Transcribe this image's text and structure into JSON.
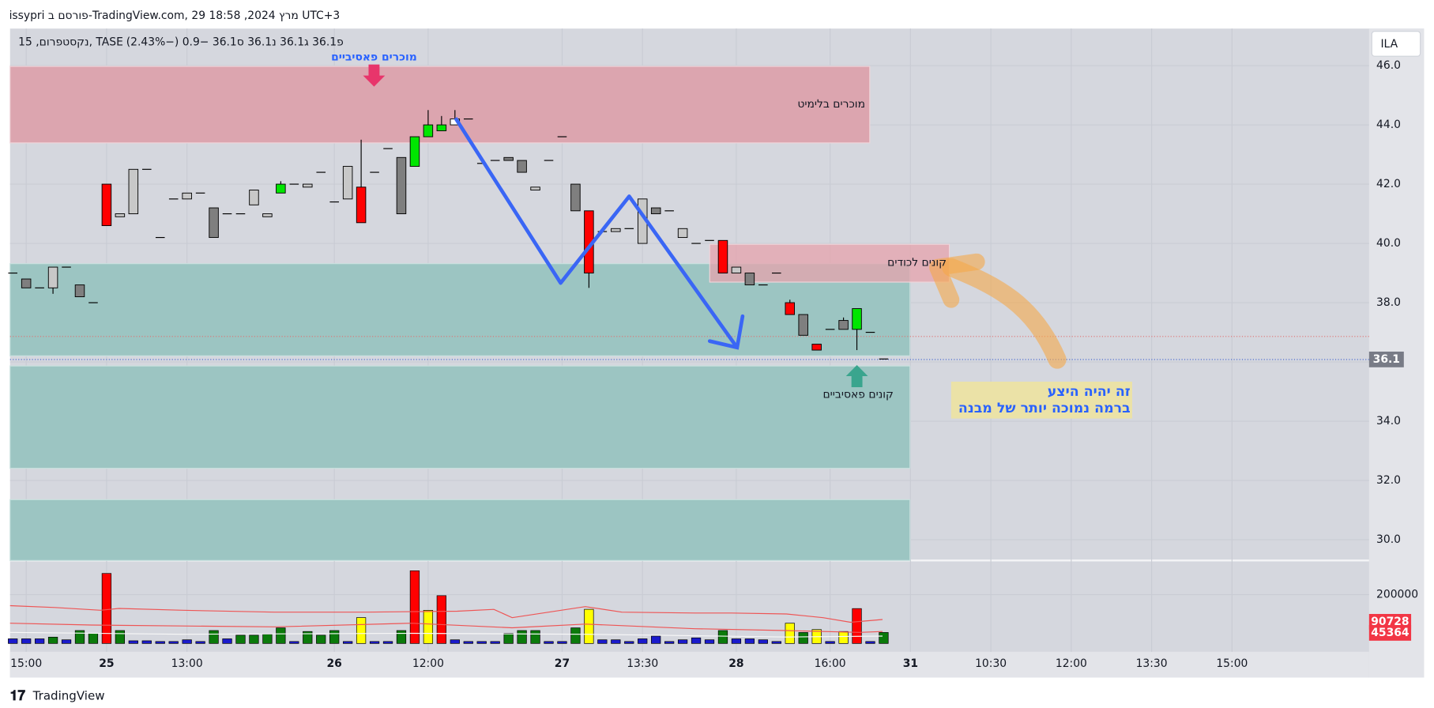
{
  "header": {
    "text": "issypri פורסם ב-TradingView.com, 29 מרץ 2024, 18:58 UTC+3"
  },
  "annotations": {
    "passive_sellers": "מוכרים פאסיביים",
    "limit_sellers": "מוכרים בלימיט",
    "trapped_buyers": "קונים לכודים",
    "passive_buyers": "קונים פאסיביים",
    "note_line1": "זה יהיה היצע",
    "note_line2": "ברמה נמוכה יותר של מבנה"
  },
  "footer": {
    "brand": "TradingView"
  },
  "chart_data": {
    "type": "candlestick",
    "symbol": "נקסטפרום, 15, TASE",
    "ohlc_text": "פ36.1 ג36.1 נ36.1 ס36.1 −0.9 (−2.43%)",
    "currency": "ILA",
    "categories": [
      null,
      "15:00",
      null,
      null,
      null,
      null,
      null,
      "25",
      null,
      null,
      null,
      null,
      null,
      "13:00",
      null,
      null,
      null,
      null,
      null,
      null,
      null,
      null,
      null,
      null,
      "26",
      null,
      null,
      null,
      null,
      null,
      null,
      "12:00",
      null,
      null,
      null,
      null,
      null,
      null,
      null,
      null,
      null,
      "27",
      null,
      null,
      null,
      null,
      null,
      "13:30",
      null,
      null,
      null,
      null,
      null,
      null,
      "28",
      null,
      null,
      null,
      null,
      null,
      null,
      "16:00",
      null,
      null,
      null,
      null,
      null,
      "31",
      null,
      null,
      null,
      null,
      null,
      "10:30",
      null,
      null,
      null,
      null,
      null,
      "12:00",
      null,
      null,
      null,
      null,
      null,
      "13:30",
      null,
      null,
      null,
      null,
      null,
      "15:00",
      null
    ],
    "open": [
      39.0,
      38.8,
      38.5,
      38.5,
      39.2,
      38.6,
      38.0,
      42.0,
      40.9,
      41.0,
      42.5,
      40.2,
      41.5,
      41.5,
      41.7,
      41.2,
      41.0,
      41.0,
      41.3,
      40.9,
      41.7,
      42.0,
      41.9,
      42.4,
      41.4,
      41.5,
      41.9,
      42.4,
      43.2,
      41.0,
      42.6,
      43.6,
      43.8,
      44.0,
      44.2,
      42.7,
      42.8,
      42.9,
      42.8,
      41.9,
      42.8,
      43.6,
      42.0,
      41.1,
      40.4,
      40.4,
      40.5,
      41.5,
      41.2,
      41.1,
      40.5,
      40.0,
      40.1,
      40.1,
      39.2,
      39.0,
      38.6,
      39.0,
      38.0,
      37.6,
      36.6,
      37.1,
      37.1,
      37.1,
      37.0,
      36.1,
      null,
      null,
      null,
      null,
      null,
      null,
      null,
      null,
      null,
      null,
      null,
      null,
      null,
      null,
      null,
      null,
      null,
      null,
      null,
      null,
      null,
      null,
      null,
      null,
      null,
      null,
      null
    ],
    "high": [
      39.0,
      38.8,
      38.5,
      39.2,
      39.2,
      38.6,
      38.0,
      42.0,
      41.0,
      42.5,
      42.5,
      40.2,
      41.5,
      41.7,
      41.7,
      41.2,
      41.0,
      41.0,
      41.8,
      41.0,
      42.1,
      42.0,
      42.0,
      42.4,
      41.4,
      42.6,
      43.5,
      42.4,
      43.2,
      42.9,
      43.6,
      44.5,
      44.3,
      44.5,
      44.2,
      42.7,
      42.8,
      42.9,
      42.8,
      41.9,
      42.8,
      43.6,
      42.0,
      41.1,
      40.4,
      40.5,
      40.5,
      41.5,
      41.2,
      41.1,
      40.5,
      40.0,
      40.1,
      40.1,
      39.2,
      39.0,
      38.6,
      39.0,
      38.1,
      37.6,
      36.6,
      37.1,
      37.5,
      37.8,
      37.0,
      36.1,
      null,
      null,
      null,
      null,
      null,
      null,
      null,
      null,
      null,
      null,
      null,
      null,
      null,
      null,
      null,
      null,
      null,
      null,
      null,
      null,
      null,
      null,
      null,
      null,
      null,
      null,
      null
    ],
    "low": [
      39.0,
      38.5,
      38.5,
      38.3,
      39.2,
      38.2,
      38.0,
      40.6,
      40.9,
      41.0,
      42.5,
      40.2,
      41.5,
      41.5,
      41.7,
      40.2,
      41.0,
      41.0,
      41.3,
      40.9,
      41.7,
      42.0,
      41.9,
      42.4,
      41.4,
      41.5,
      40.7,
      42.4,
      43.2,
      41.0,
      42.6,
      43.6,
      43.8,
      44.0,
      44.2,
      42.7,
      42.8,
      42.8,
      42.4,
      41.8,
      42.8,
      43.6,
      41.1,
      38.5,
      40.4,
      40.4,
      40.5,
      40.0,
      41.0,
      41.1,
      40.2,
      40.0,
      40.1,
      39.0,
      39.0,
      38.6,
      38.6,
      39.0,
      37.6,
      36.9,
      36.4,
      37.1,
      37.1,
      36.4,
      37.0,
      36.1,
      null,
      null,
      null,
      null,
      null,
      null,
      null,
      null,
      null,
      null,
      null,
      null,
      null,
      null,
      null,
      null,
      null,
      null,
      null,
      null,
      null,
      null,
      null,
      null,
      null,
      null,
      null
    ],
    "close": [
      39.0,
      38.5,
      38.5,
      39.2,
      39.2,
      38.2,
      38.0,
      40.6,
      41.0,
      42.5,
      42.5,
      40.2,
      41.5,
      41.7,
      41.7,
      40.2,
      41.0,
      41.0,
      41.8,
      41.0,
      42.0,
      42.0,
      42.0,
      42.4,
      41.4,
      42.6,
      40.7,
      42.4,
      43.2,
      42.9,
      43.6,
      44.0,
      44.0,
      44.2,
      44.2,
      42.7,
      42.8,
      42.8,
      42.4,
      41.8,
      42.8,
      43.6,
      41.1,
      39.0,
      40.4,
      40.5,
      40.5,
      40.0,
      41.0,
      41.1,
      40.2,
      40.0,
      40.1,
      39.0,
      39.0,
      38.6,
      38.6,
      39.0,
      37.6,
      36.9,
      36.4,
      37.1,
      37.4,
      37.8,
      37.0,
      36.1,
      null,
      null,
      null,
      null,
      null,
      null,
      null,
      null,
      null,
      null,
      null,
      null,
      null,
      null,
      null,
      null,
      null,
      null,
      null,
      null,
      null,
      null,
      null,
      null,
      null,
      null,
      null
    ],
    "candle_colors": [
      "#7f7f7f",
      "#7f7f7f",
      "#7f7f7f",
      "#c8c8c8",
      "#7f7f7f",
      "#7f7f7f",
      "#7f7f7f",
      "#ff0000",
      "#c8c8c8",
      "#c8c8c8",
      "#7f7f7f",
      "#7f7f7f",
      "#7f7f7f",
      "#c8c8c8",
      "#7f7f7f",
      "#7f7f7f",
      "#7f7f7f",
      "#7f7f7f",
      "#c8c8c8",
      "#c8c8c8",
      "#00e600",
      "#7f7f7f",
      "#c8c8c8",
      "#7f7f7f",
      "#7f7f7f",
      "#c8c8c8",
      "#ff0000",
      "#7f7f7f",
      "#7f7f7f",
      "#7f7f7f",
      "#00e600",
      "#00e600",
      "#00e600",
      "#ffffff",
      "#7f7f7f",
      "#7f7f7f",
      "#7f7f7f",
      "#7f7f7f",
      "#7f7f7f",
      "#c8c8c8",
      "#7f7f7f",
      "#7f7f7f",
      "#7f7f7f",
      "#ff0000",
      "#7f7f7f",
      "#c8c8c8",
      "#7f7f7f",
      "#c8c8c8",
      "#7f7f7f",
      "#7f7f7f",
      "#c8c8c8",
      "#7f7f7f",
      "#7f7f7f",
      "#ff0000",
      "#c8c8c8",
      "#7f7f7f",
      "#7f7f7f",
      "#7f7f7f",
      "#ff0000",
      "#7f7f7f",
      "#ff0000",
      "#7f7f7f",
      "#7f7f7f",
      "#00e600",
      "#7f7f7f",
      "#7f7f7f",
      null,
      null,
      null,
      null,
      null,
      null,
      null,
      null,
      null,
      null,
      null,
      null,
      null,
      null,
      null,
      null,
      null,
      null,
      null,
      null,
      null,
      null,
      null,
      null,
      null,
      null,
      null
    ],
    "ylim": [
      29.3,
      47.25
    ],
    "yticks": [
      {
        "value": 30,
        "label": "30.0"
      },
      {
        "value": 32,
        "label": "32.0"
      },
      {
        "value": 34,
        "label": "34.0"
      },
      {
        "value": 36,
        "label": "36.0"
      },
      {
        "value": 38,
        "label": "38.0"
      },
      {
        "value": 40,
        "label": "40.0"
      },
      {
        "value": 42,
        "label": "42.0"
      },
      {
        "value": 44,
        "label": "44.0"
      },
      {
        "value": 46,
        "label": "46.0"
      }
    ],
    "last_price": 36.1,
    "grid": true,
    "volume": {
      "values": [
        19000,
        19000,
        19000,
        26000,
        15000,
        53000,
        42000,
        287000,
        53000,
        11000,
        11000,
        8000,
        8000,
        15000,
        8000,
        53000,
        19000,
        34000,
        34000,
        38000,
        64000,
        8000,
        49000,
        34000,
        53000,
        8000,
        106000,
        8000,
        8000,
        53000,
        298000,
        136000,
        196000,
        15000,
        8000,
        8000,
        8000,
        42000,
        53000,
        53000,
        8000,
        8000,
        64000,
        140000,
        15000,
        15000,
        8000,
        19000,
        30000,
        8000,
        15000,
        23000,
        15000,
        53000,
        19000,
        19000,
        15000,
        8000,
        83000,
        45000,
        57000,
        8000,
        49000,
        143000,
        8000,
        45000,
        null,
        null,
        null,
        null,
        null,
        null,
        null,
        null,
        null,
        null,
        null,
        null,
        null,
        null,
        null,
        null,
        null,
        null,
        null,
        null,
        null,
        null,
        null,
        null,
        null,
        null,
        null
      ],
      "colors": [
        "#1a1acc",
        "#1a1acc",
        "#1a1acc",
        "#0b7a0b",
        "#1a1acc",
        "#0b7a0b",
        "#0b7a0b",
        "#ff0000",
        "#0b7a0b",
        "#1a1acc",
        "#1a1acc",
        "#1a1acc",
        "#1a1acc",
        "#1a1acc",
        "#1a1acc",
        "#0b7a0b",
        "#1a1acc",
        "#0b7a0b",
        "#0b7a0b",
        "#0b7a0b",
        "#0b7a0b",
        "#1a1acc",
        "#0b7a0b",
        "#0b7a0b",
        "#0b7a0b",
        "#1a1acc",
        "#ffff00",
        "#1a1acc",
        "#1a1acc",
        "#0b7a0b",
        "#ff0000",
        "#ffff00",
        "#ff0000",
        "#1a1acc",
        "#1a1acc",
        "#1a1acc",
        "#1a1acc",
        "#0b7a0b",
        "#0b7a0b",
        "#0b7a0b",
        "#1a1acc",
        "#1a1acc",
        "#0b7a0b",
        "#ffff00",
        "#1a1acc",
        "#1a1acc",
        "#1a1acc",
        "#1a1acc",
        "#1a1acc",
        "#1a1acc",
        "#1a1acc",
        "#1a1acc",
        "#1a1acc",
        "#0b7a0b",
        "#1a1acc",
        "#1a1acc",
        "#1a1acc",
        "#1a1acc",
        "#ffff00",
        "#0b7a0b",
        "#ffff00",
        "#1a1acc",
        "#ffff00",
        "#ff0000",
        "#1a1acc",
        "#0b7a0b",
        null,
        null,
        null,
        null,
        null,
        null,
        null,
        null,
        null,
        null,
        null,
        null,
        null,
        null,
        null,
        null,
        null,
        null,
        null,
        null,
        null,
        null,
        null,
        null,
        null,
        null,
        null
      ],
      "ylim": [
        0,
        325000
      ],
      "yticks": [
        200000
      ],
      "markers": [
        90728,
        45364
      ]
    }
  }
}
